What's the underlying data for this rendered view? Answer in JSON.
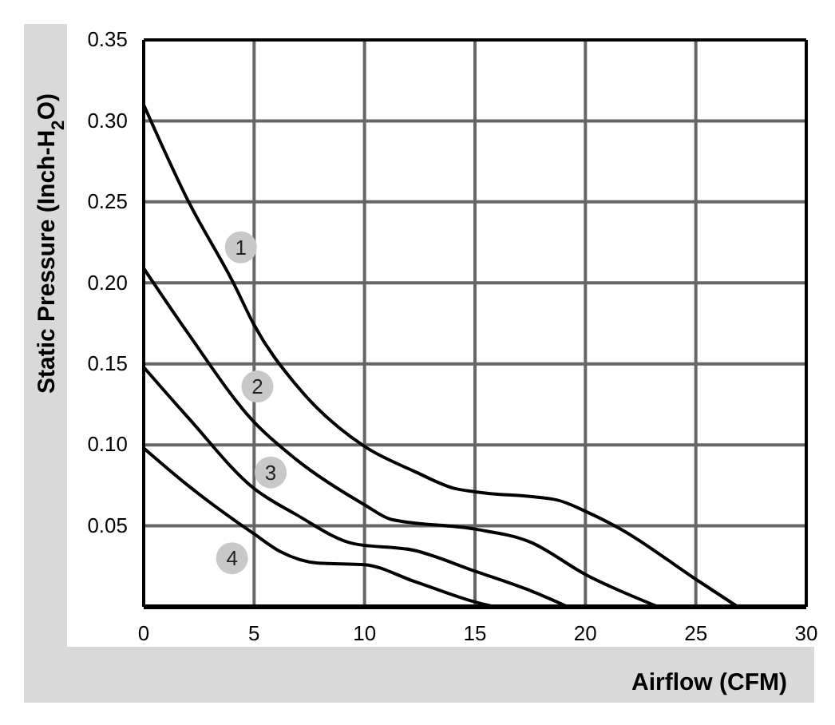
{
  "chart_data": {
    "type": "line",
    "xlabel": "Airflow (CFM)",
    "ylabel": "Static Pressure (Inch-H$_{2}$O)",
    "xlim": [
      0,
      30
    ],
    "xticks": [
      0,
      5,
      10,
      15,
      20,
      25,
      30
    ],
    "ylim": [
      0,
      0.35
    ],
    "yticks": [
      {
        "value": 0,
        "label": null
      },
      {
        "value": 0.05,
        "label": "0.05"
      },
      {
        "value": 0.1,
        "label": "0.10"
      },
      {
        "value": 0.15,
        "label": "0.15"
      },
      {
        "value": 0.2,
        "label": "0.20"
      },
      {
        "value": 0.25,
        "label": "0.25"
      },
      {
        "value": 0.3,
        "label": "0.30"
      },
      {
        "value": 0.35,
        "label": "0.35"
      }
    ],
    "grid": true,
    "marker": "none",
    "line_style": "solid",
    "series": [
      {
        "color": "#000000",
        "x": [
          0,
          2,
          4.1,
          5,
          6.9,
          10,
          12.2,
          14.1,
          15,
          18.7,
          20,
          21.6,
          25,
          26.9
        ],
        "values": [
          0.31,
          0.251,
          0.199,
          0.174,
          0.137,
          0.099,
          0.084,
          0.073,
          0.071,
          0.066,
          0.059,
          0.048,
          0.017,
          0
        ]
      },
      {
        "color": "#000000",
        "x": [
          0,
          2,
          5,
          6.9,
          10,
          11.2,
          15,
          17.5,
          20,
          23.3
        ],
        "values": [
          0.209,
          0.169,
          0.114,
          0.091,
          0.063,
          0.054,
          0.048,
          0.04,
          0.02,
          0
        ]
      },
      {
        "color": "#000000",
        "x": [
          0,
          2,
          5,
          6.9,
          9.5,
          12.2,
          15,
          17.5,
          19.2
        ],
        "values": [
          0.148,
          0.117,
          0.073,
          0.057,
          0.039,
          0.035,
          0.022,
          0.01,
          0
        ]
      },
      {
        "color": "#000000",
        "x": [
          0,
          2,
          5,
          6.2,
          7.9,
          10,
          12.2,
          15,
          15.9
        ],
        "values": [
          0.098,
          0.075,
          0.045,
          0.034,
          0.027,
          0.026,
          0.016,
          0.003,
          0
        ]
      }
    ],
    "annotations": [
      {
        "text": "1",
        "x": 4.4,
        "y": 0.222
      },
      {
        "text": "2",
        "x": 5.15,
        "y": 0.136
      },
      {
        "text": "3",
        "x": 5.75,
        "y": 0.083
      },
      {
        "text": "4",
        "x": 4,
        "y": 0.03
      }
    ]
  }
}
